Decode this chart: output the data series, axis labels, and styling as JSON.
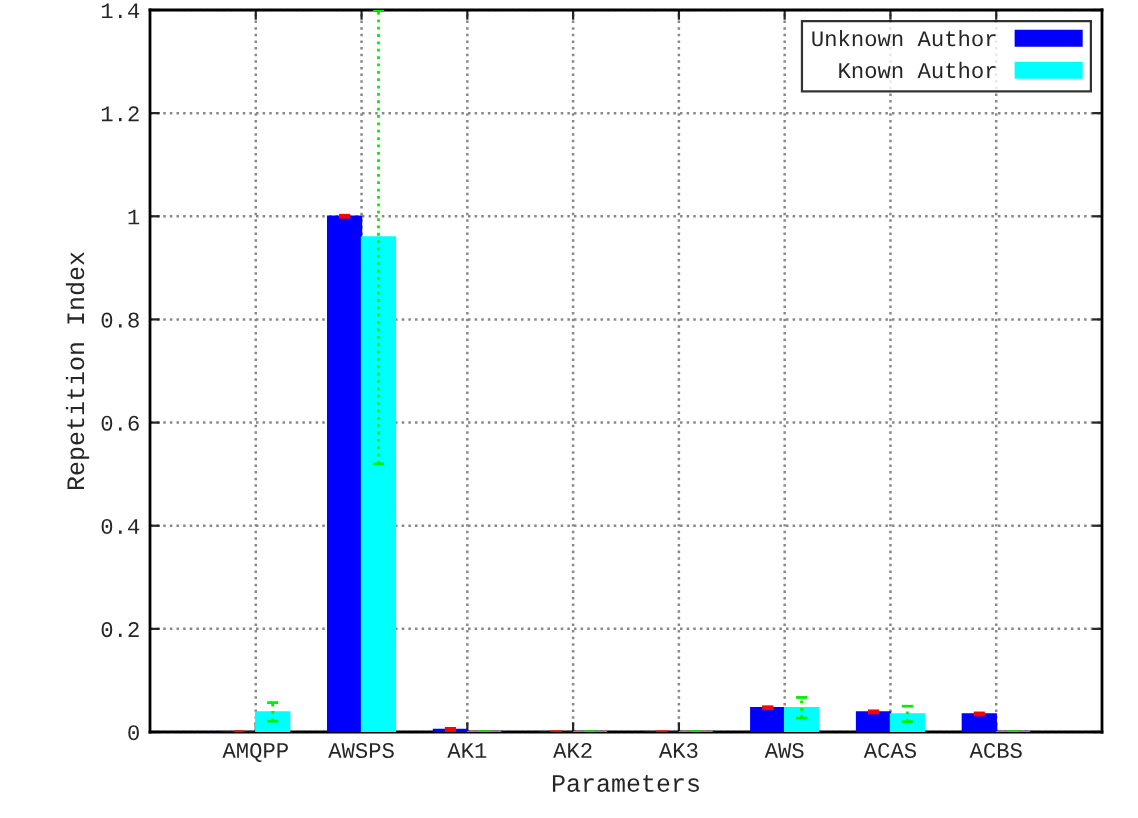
{
  "chart_data": {
    "type": "bar",
    "xlabel": "Parameters",
    "ylabel": "Repetition Index",
    "categories": [
      "AMQPP",
      "AWSPS",
      "AK1",
      "AK2",
      "AK3",
      "AWS",
      "ACAS",
      "ACBS"
    ],
    "series": [
      {
        "name": "Unknown Author",
        "color": "#0000ff",
        "values": [
          0,
          1.0,
          0.005,
          0,
          0,
          0.047,
          0.039,
          0.035
        ],
        "errors": [
          0,
          0.002,
          0.002,
          0,
          0,
          0.002,
          0.002,
          0.002
        ]
      },
      {
        "name": "Known Author",
        "color": "#00ffff",
        "values": [
          0.039,
          0.96,
          0,
          0,
          0,
          0.047,
          0.035,
          0
        ],
        "errors": [
          0.018,
          0.44,
          0,
          0,
          0,
          0.02,
          0.015,
          0
        ]
      }
    ],
    "ylim": [
      0,
      1.4
    ],
    "yticks": [
      0,
      0.2,
      0.4,
      0.6,
      0.8,
      1,
      1.2,
      1.4
    ],
    "grid": true,
    "legend": "top right"
  }
}
